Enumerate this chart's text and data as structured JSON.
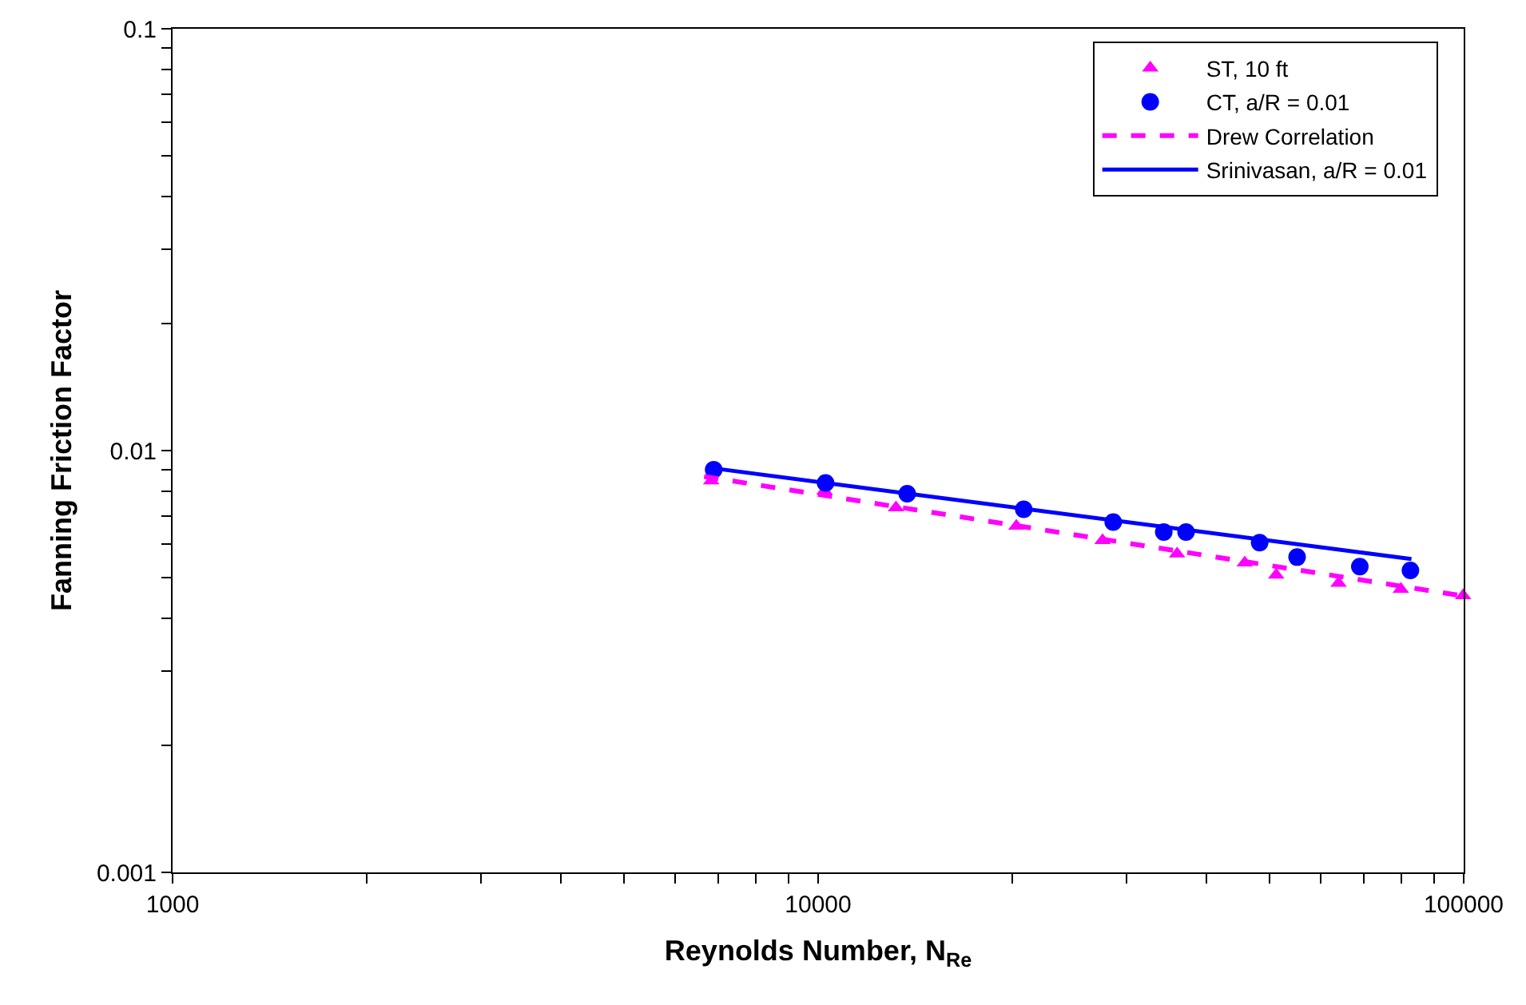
{
  "chart_data": {
    "type": "scatter",
    "xlabel": "Reynolds Number, N$_{Re}$",
    "ylabel": "Fanning Friction Factor",
    "log": "xy",
    "xlim": [
      1000,
      100000
    ],
    "ylim": [
      0.001,
      0.1
    ],
    "xticks": [
      1000,
      {
        "value": 2000,
        "label": null
      },
      {
        "value": 3000,
        "label": null
      },
      {
        "value": 4000,
        "label": null
      },
      {
        "value": 5000,
        "label": null
      },
      {
        "value": 6000,
        "label": null
      },
      {
        "value": 7000,
        "label": null
      },
      {
        "value": 8000,
        "label": null
      },
      {
        "value": 9000,
        "label": null
      },
      10000,
      {
        "value": 20000,
        "label": null
      },
      {
        "value": 30000,
        "label": null
      },
      {
        "value": 40000,
        "label": null
      },
      {
        "value": 50000,
        "label": null
      },
      {
        "value": 60000,
        "label": null
      },
      {
        "value": 70000,
        "label": null
      },
      {
        "value": 80000,
        "label": null
      },
      {
        "value": 90000,
        "label": null
      },
      100000
    ],
    "yticks": [
      0.001,
      {
        "value": 0.002,
        "label": null
      },
      {
        "value": 0.003,
        "label": null
      },
      {
        "value": 0.004,
        "label": null
      },
      {
        "value": 0.005,
        "label": null
      },
      {
        "value": 0.006,
        "label": null
      },
      {
        "value": 0.007,
        "label": null
      },
      {
        "value": 0.008,
        "label": null
      },
      {
        "value": 0.009,
        "label": null
      },
      0.01,
      {
        "value": 0.02,
        "label": null
      },
      {
        "value": 0.03,
        "label": null
      },
      {
        "value": 0.04,
        "label": null
      },
      {
        "value": 0.05,
        "label": null
      },
      {
        "value": 0.06,
        "label": null
      },
      {
        "value": 0.07,
        "label": null
      },
      {
        "value": 0.08,
        "label": null
      },
      {
        "value": 0.09,
        "label": null
      },
      0.1
    ],
    "grid": false,
    "legend": "top right",
    "series": [
      {
        "name": "ST, 10 ft",
        "marker": "triangle",
        "color": "#ff00ff",
        "x": [
          6830,
          10230,
          13200,
          20280,
          27580,
          35980,
          45800,
          51240,
          64000,
          79920,
          99800
        ],
        "values": [
          0.00848,
          0.00802,
          0.00732,
          0.00662,
          0.00612,
          0.00569,
          0.00542,
          0.00507,
          0.00485,
          0.00469,
          0.00453
        ]
      },
      {
        "name": "CT, a/R = 0.01",
        "marker": "circle",
        "color": "#0000ff",
        "x": [
          6890,
          10270,
          13740,
          20820,
          28650,
          34310,
          37150,
          48300,
          55200,
          69040,
          82700
        ],
        "values": [
          0.00901,
          0.00838,
          0.0079,
          0.00726,
          0.00677,
          0.00641,
          0.00641,
          0.00605,
          0.00559,
          0.00531,
          0.0052
        ]
      },
      {
        "name": "Drew Correlation",
        "type": "line",
        "line_style": "dashed",
        "color": "#ff00ff",
        "x": [
          6660,
          100000
        ],
        "values": [
          0.00868,
          0.00452
        ]
      },
      {
        "name": "Srinivasan, a/R = 0.01",
        "type": "line",
        "line_style": "solid",
        "color": "#0000ff",
        "x": [
          6950,
          83000
        ],
        "values": [
          0.00906,
          0.00553
        ]
      }
    ]
  }
}
